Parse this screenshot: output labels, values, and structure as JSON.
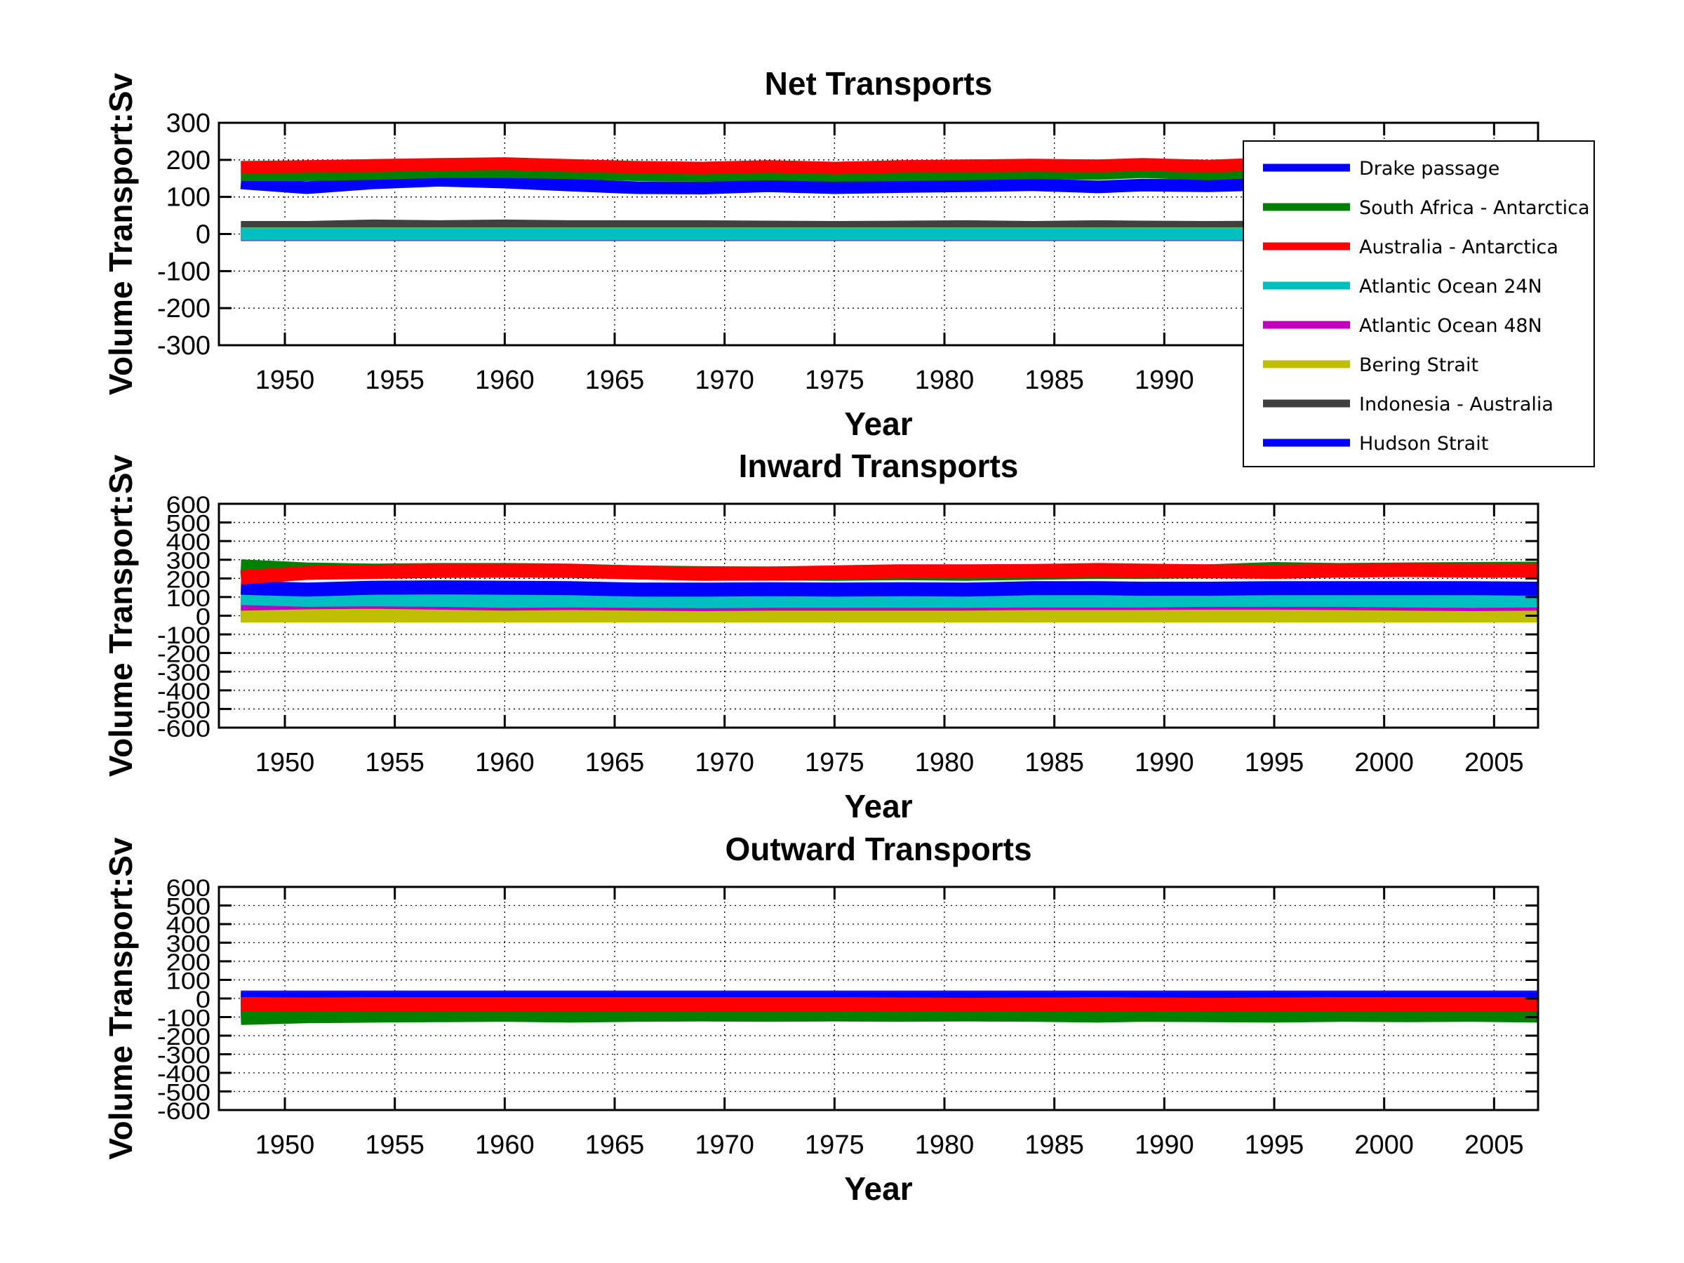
{
  "figure": {
    "legend": {
      "entries": [
        {
          "label": "Drake passage",
          "color": "#0000ff"
        },
        {
          "label": "South Africa - Antarctica",
          "color": "#008000"
        },
        {
          "label": "Australia - Antarctica",
          "color": "#ff0000"
        },
        {
          "label": "Atlantic Ocean 24N",
          "color": "#00bfbf"
        },
        {
          "label": "Atlantic Ocean 48N",
          "color": "#bf00bf"
        },
        {
          "label": "Bering Strait",
          "color": "#bfbf00"
        },
        {
          "label": "Indonesia - Australia",
          "color": "#404040"
        },
        {
          "label": "Hudson Strait",
          "color": "#0000ff"
        }
      ],
      "placement": "top-right"
    }
  },
  "chart_data": [
    {
      "type": "line",
      "title": "Net Transports",
      "xlabel": "Year",
      "ylabel": "Volume Transport:Sv",
      "xlim": [
        1947,
        2007
      ],
      "ylim": [
        -300,
        300
      ],
      "xticks": [
        1950,
        1955,
        1960,
        1965,
        1970,
        1975,
        1980,
        1985,
        1990,
        1995,
        2000,
        2005
      ],
      "xtick_labels": [
        "1950",
        "1955",
        "1960",
        "1965",
        "1970",
        "1975",
        "1980",
        "1985",
        "1990",
        "",
        "",
        ""
      ],
      "yticks": [
        -300,
        -200,
        -100,
        0,
        100,
        200,
        300
      ],
      "ytick_labels": [
        "-300",
        "-200",
        "-100",
        "0",
        "100",
        "200",
        "300"
      ],
      "grid": true,
      "legend": "top-right",
      "x": [
        1948,
        1951,
        1954,
        1957,
        1960,
        1963,
        1966,
        1969,
        1972,
        1975,
        1978,
        1981,
        1984,
        1987,
        1989,
        1992,
        1995,
        1998,
        2001,
        2004,
        2007
      ],
      "series": [
        {
          "name": "Drake passage",
          "color": "#0000ff",
          "values": [
            138,
            125,
            138,
            145,
            140,
            132,
            125,
            124,
            130,
            125,
            128,
            130,
            133,
            127,
            132,
            130,
            135,
            133,
            135,
            133,
            135
          ]
        },
        {
          "name": "South Africa - Antarctica",
          "color": "#008000",
          "values": [
            160,
            160,
            163,
            168,
            168,
            165,
            160,
            158,
            162,
            158,
            160,
            162,
            165,
            163,
            168,
            162,
            170,
            168,
            168,
            165,
            168
          ]
        },
        {
          "name": "Australia - Antarctica",
          "color": "#ff0000",
          "values": [
            180,
            182,
            185,
            188,
            190,
            185,
            180,
            178,
            182,
            178,
            182,
            184,
            186,
            184,
            188,
            183,
            190,
            188,
            188,
            186,
            188
          ]
        },
        {
          "name": "Atlantic Ocean 24N",
          "color": "#00bfbf",
          "values": [
            0,
            0,
            0,
            0,
            0,
            0,
            0,
            0,
            0,
            0,
            0,
            0,
            0,
            0,
            0,
            0,
            0,
            0,
            0,
            0,
            0
          ]
        },
        {
          "name": "Atlantic Ocean 48N",
          "color": "#bf00bf",
          "values": [
            -2,
            -2,
            -2,
            -2,
            -2,
            -2,
            -2,
            -2,
            -2,
            -2,
            -2,
            -2,
            -2,
            -2,
            -2,
            -2,
            -2,
            -2,
            -2,
            -2,
            -2
          ]
        },
        {
          "name": "Bering Strait",
          "color": "#bfbf00",
          "values": [
            1,
            1,
            1,
            1,
            1,
            1,
            1,
            1,
            1,
            1,
            1,
            1,
            1,
            1,
            1,
            1,
            1,
            1,
            1,
            1,
            1
          ]
        },
        {
          "name": "Indonesia - Australia",
          "color": "#404040",
          "values": [
            18,
            18,
            22,
            20,
            22,
            20,
            20,
            20,
            19,
            18,
            19,
            20,
            18,
            20,
            19,
            18,
            19,
            18,
            18,
            19,
            18
          ]
        },
        {
          "name": "Hudson Strait",
          "color": "#0000ff",
          "values": [
            2,
            2,
            2,
            2,
            2,
            2,
            2,
            2,
            2,
            2,
            2,
            2,
            2,
            2,
            2,
            2,
            2,
            2,
            2,
            2,
            2
          ]
        }
      ]
    },
    {
      "type": "line",
      "title": "Inward Transports",
      "xlabel": "Year",
      "ylabel": "Volume Transport:Sv",
      "xlim": [
        1947,
        2007
      ],
      "ylim": [
        -600,
        600
      ],
      "xticks": [
        1950,
        1955,
        1960,
        1965,
        1970,
        1975,
        1980,
        1985,
        1990,
        1995,
        2000,
        2005
      ],
      "xtick_labels": [
        "1950",
        "1955",
        "1960",
        "1965",
        "1970",
        "1975",
        "1980",
        "1985",
        "1990",
        "1995",
        "2000",
        "2005"
      ],
      "yticks": [
        -600,
        -500,
        -400,
        -300,
        -200,
        -100,
        0,
        100,
        200,
        300,
        400,
        500,
        600
      ],
      "ytick_labels": [
        "-600",
        "-500",
        "-400",
        "-300",
        "-200",
        "-100",
        "0",
        "100",
        "200",
        "300",
        "400",
        "500",
        "600"
      ],
      "grid": true,
      "x": [
        1948,
        1951,
        1954,
        1957,
        1960,
        1963,
        1966,
        1969,
        1972,
        1975,
        1978,
        1981,
        1984,
        1987,
        1989,
        1992,
        1995,
        1998,
        2001,
        2004,
        2007
      ],
      "series": [
        {
          "name": "Drake passage",
          "color": "#0000ff",
          "values": [
            150,
            140,
            150,
            152,
            150,
            148,
            140,
            140,
            142,
            140,
            142,
            140,
            148,
            148,
            145,
            145,
            148,
            148,
            148,
            148,
            145
          ]
        },
        {
          "name": "South Africa - Antarctica",
          "color": "#008000",
          "values": [
            265,
            248,
            242,
            245,
            245,
            242,
            232,
            228,
            226,
            225,
            228,
            225,
            230,
            235,
            235,
            238,
            250,
            245,
            248,
            250,
            252
          ]
        },
        {
          "name": "Australia - Antarctica",
          "color": "#ff0000",
          "values": [
            205,
            230,
            235,
            240,
            242,
            240,
            232,
            225,
            226,
            232,
            238,
            238,
            240,
            245,
            242,
            238,
            235,
            242,
            245,
            242,
            242
          ]
        },
        {
          "name": "Atlantic Ocean 24N",
          "color": "#00bfbf",
          "values": [
            95,
            85,
            88,
            85,
            80,
            82,
            80,
            78,
            80,
            80,
            80,
            80,
            82,
            82,
            82,
            85,
            85,
            85,
            82,
            80,
            82
          ]
        },
        {
          "name": "Atlantic Ocean 48N",
          "color": "#bf00bf",
          "values": [
            65,
            72,
            75,
            70,
            65,
            68,
            65,
            62,
            65,
            65,
            65,
            65,
            68,
            68,
            68,
            70,
            70,
            68,
            65,
            62,
            65
          ]
        },
        {
          "name": "Bering Strait",
          "color": "#bfbf00",
          "values": [
            1,
            1,
            1,
            1,
            1,
            1,
            1,
            1,
            1,
            1,
            1,
            1,
            1,
            1,
            1,
            1,
            1,
            1,
            1,
            1,
            1
          ]
        },
        {
          "name": "Indonesia - Australia",
          "color": "#404040",
          "values": [
            28,
            28,
            30,
            30,
            30,
            30,
            30,
            30,
            30,
            30,
            30,
            30,
            30,
            30,
            30,
            30,
            30,
            30,
            30,
            30,
            30
          ]
        },
        {
          "name": "Hudson Strait",
          "color": "#0000ff",
          "values": [
            2,
            2,
            2,
            2,
            2,
            2,
            2,
            2,
            2,
            2,
            2,
            2,
            2,
            2,
            2,
            2,
            2,
            2,
            2,
            2,
            2
          ]
        }
      ]
    },
    {
      "type": "line",
      "title": "Outward Transports",
      "xlabel": "Year",
      "ylabel": "Volume Transport:Sv",
      "xlim": [
        1947,
        2007
      ],
      "ylim": [
        -600,
        600
      ],
      "xticks": [
        1950,
        1955,
        1960,
        1965,
        1970,
        1975,
        1980,
        1985,
        1990,
        1995,
        2000,
        2005
      ],
      "xtick_labels": [
        "1950",
        "1955",
        "1960",
        "1965",
        "1970",
        "1975",
        "1980",
        "1985",
        "1990",
        "1995",
        "2000",
        "2005"
      ],
      "yticks": [
        -600,
        -500,
        -400,
        -300,
        -200,
        -100,
        0,
        100,
        200,
        300,
        400,
        500,
        600
      ],
      "ytick_labels": [
        "-600",
        "-500",
        "-400",
        "-300",
        "-200",
        "-100",
        "0",
        "100",
        "200",
        "300",
        "400",
        "500",
        "600"
      ],
      "grid": true,
      "x": [
        1948,
        1951,
        1954,
        1957,
        1960,
        1963,
        1966,
        1969,
        1972,
        1975,
        1978,
        1981,
        1984,
        1987,
        1989,
        1992,
        1995,
        1998,
        2001,
        2004,
        2007
      ],
      "series": [
        {
          "name": "Drake passage",
          "color": "#0000ff",
          "values": [
            -2,
            -2,
            -2,
            -2,
            -2,
            -2,
            -2,
            -2,
            -2,
            -2,
            -2,
            -2,
            -2,
            -2,
            -2,
            -2,
            -2,
            -2,
            -2,
            -2,
            -2
          ]
        },
        {
          "name": "South Africa - Antarctica",
          "color": "#008000",
          "values": [
            -105,
            -95,
            -92,
            -90,
            -88,
            -92,
            -88,
            -86,
            -88,
            -86,
            -88,
            -86,
            -88,
            -92,
            -88,
            -90,
            -92,
            -88,
            -90,
            -88,
            -92
          ]
        },
        {
          "name": "Australia - Antarctica",
          "color": "#ff0000",
          "values": [
            -30,
            -32,
            -30,
            -30,
            -30,
            -30,
            -30,
            -30,
            -30,
            -30,
            -32,
            -34,
            -32,
            -30,
            -32,
            -34,
            -32,
            -30,
            -30,
            -30,
            -30
          ]
        },
        {
          "name": "Atlantic Ocean 24N",
          "color": "#00bfbf",
          "values": [
            -95,
            -88,
            -85,
            -82,
            -82,
            -85,
            -80,
            -80,
            -82,
            -80,
            -80,
            -82,
            -80,
            -84,
            -80,
            -82,
            -84,
            -80,
            -80,
            -78,
            -82
          ]
        },
        {
          "name": "Atlantic Ocean 48N",
          "color": "#bf00bf",
          "values": [
            -65,
            -60,
            -62,
            -55,
            -52,
            -52,
            -52,
            -50,
            -52,
            -52,
            -55,
            -55,
            -52,
            -55,
            -55,
            -58,
            -55,
            -58,
            -55,
            -52,
            -55
          ]
        },
        {
          "name": "Bering Strait",
          "color": "#bfbf00",
          "values": [
            -1,
            -1,
            -1,
            -1,
            -1,
            -1,
            -1,
            -1,
            -1,
            -1,
            -1,
            -1,
            -1,
            -1,
            -1,
            -1,
            -1,
            -1,
            -1,
            -1,
            -1
          ]
        },
        {
          "name": "Indonesia - Australia",
          "color": "#404040",
          "values": [
            -5,
            -5,
            -5,
            -5,
            -5,
            -5,
            -5,
            -5,
            -5,
            -5,
            -5,
            -5,
            -5,
            -5,
            -5,
            -5,
            -5,
            -5,
            -5,
            -5,
            -5
          ]
        },
        {
          "name": "Hudson Strait",
          "color": "#0000ff",
          "values": [
            5,
            5,
            5,
            5,
            5,
            5,
            5,
            5,
            5,
            5,
            5,
            5,
            5,
            5,
            5,
            5,
            5,
            5,
            5,
            5,
            5
          ]
        }
      ]
    }
  ]
}
